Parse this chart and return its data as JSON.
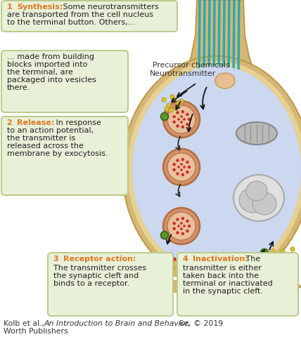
{
  "bg_color": "#ffffff",
  "box_bg": "#e8f0d8",
  "box_border": "#b8cc88",
  "orange_text": "#e07820",
  "dark_text": "#222222",
  "neuron_fill": "#ccd8f0",
  "axon_fill": "#d4b878",
  "axon_border": "#c49848",
  "axon_inner": "#e8d090",
  "teal_color": "#18a8b8",
  "green_dot": "#5a9828",
  "yellow_dot": "#d8c038",
  "red_dot": "#cc2828",
  "mito_fill": "#b8b8b8",
  "mito_border": "#888888",
  "nuc_fill": "#d4d4d4",
  "nuc_border": "#aaaaaa",
  "vesicle_outer": "#d4906a",
  "vesicle_inner": "#e8c09a",
  "vesicle_border": "#b07040",
  "cleft_fill": "#e8d898",
  "receptor_color": "#d8b828",
  "box1_title": "1",
  "box1_bold": "Synthesis:",
  "box1_body": " Some neurotransmitters\nare transported from the cell nucleus\nto the terminal button. Others,...",
  "box2_title": "2",
  "box2_bold": "Release:",
  "box2_body": " In response\nto an action potential,\nthe transmitter is\nreleased across the\nmembrane by exocytosis.",
  "box_mid_body": "... made from building\nblocks imported into\nthe terminal, are\npackaged into vesicles\nthere.",
  "box3_title": "3",
  "box3_bold": "Receptor action:",
  "box3_body": "The transmitter crosses\nthe synaptic cleft and\nbinds to a receptor.",
  "box4_title": "4",
  "box4_bold": "Inactivation:",
  "box4_body": " The\ntransmitter is either\ntaken back into the\nterminal or inactivated\nin the synaptic cleft.",
  "label_precursor": "Precursor chemicals",
  "label_neurotransmitter": "Neurotransmitter"
}
